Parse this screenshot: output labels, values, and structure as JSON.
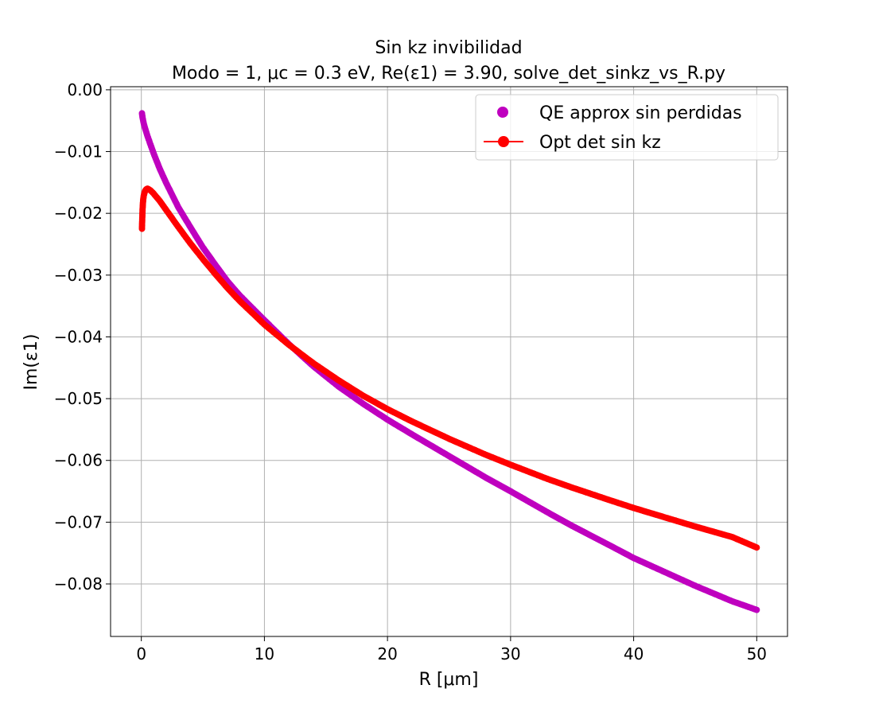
{
  "chart_data": {
    "type": "scatter",
    "title": "Sin kz invibilidad",
    "subtitle": "Modo = 1, μc = 0.3 eV, Re(ε1) = 3.90, solve_det_sinkz_vs_R.py",
    "xlabel": "R [μm]",
    "ylabel": "Im(ε1)",
    "xlim": [
      -2.5,
      52.5
    ],
    "ylim": [
      -0.0885,
      0.0005
    ],
    "xticks": [
      0,
      10,
      20,
      30,
      40,
      50
    ],
    "yticks": [
      0.0,
      -0.01,
      -0.02,
      -0.03,
      -0.04,
      -0.05,
      -0.06,
      -0.07,
      -0.08
    ],
    "xtick_labels": [
      "0",
      "10",
      "20",
      "30",
      "40",
      "50"
    ],
    "ytick_labels": [
      "0.00",
      "−0.01",
      "−0.02",
      "−0.03",
      "−0.04",
      "−0.05",
      "−0.06",
      "−0.07",
      "−0.08"
    ],
    "grid": true,
    "legend_position": "top-right",
    "series": [
      {
        "name": "QE approx sin perdidas",
        "marker": "circle",
        "line": false,
        "color": "#bf00bf",
        "x": [
          0.05,
          0.1,
          0.2,
          0.3,
          0.5,
          0.75,
          1,
          1.5,
          2,
          3,
          4,
          5,
          6,
          7,
          8,
          9,
          10,
          12,
          14,
          16,
          18,
          20,
          22,
          25,
          28,
          30,
          33,
          35,
          38,
          40,
          43,
          45,
          48,
          50
        ],
        "y": [
          -0.0038,
          -0.0045,
          -0.0055,
          -0.0062,
          -0.0075,
          -0.0089,
          -0.0103,
          -0.0128,
          -0.015,
          -0.019,
          -0.0223,
          -0.0255,
          -0.0283,
          -0.031,
          -0.0333,
          -0.0353,
          -0.0373,
          -0.0412,
          -0.0448,
          -0.048,
          -0.0508,
          -0.0534,
          -0.0558,
          -0.0593,
          -0.0628,
          -0.065,
          -0.0684,
          -0.0706,
          -0.0737,
          -0.0758,
          -0.0785,
          -0.0803,
          -0.0828,
          -0.0842
        ]
      },
      {
        "name": "Opt det sin kz",
        "marker": "circle",
        "line": true,
        "color": "#ff0000",
        "x": [
          0.05,
          0.1,
          0.15,
          0.2,
          0.25,
          0.3,
          0.4,
          0.5,
          0.6,
          0.75,
          1,
          1.5,
          2,
          3,
          4,
          5,
          6,
          7,
          8,
          9,
          10,
          12,
          14,
          16,
          18,
          20,
          22,
          25,
          28,
          30,
          33,
          35,
          38,
          40,
          43,
          45,
          48,
          50
        ],
        "y": [
          -0.0225,
          -0.0193,
          -0.0178,
          -0.0171,
          -0.0167,
          -0.0164,
          -0.0161,
          -0.016,
          -0.0161,
          -0.0163,
          -0.0168,
          -0.018,
          -0.0194,
          -0.0222,
          -0.0249,
          -0.0274,
          -0.0298,
          -0.0321,
          -0.0342,
          -0.0361,
          -0.038,
          -0.0413,
          -0.0443,
          -0.047,
          -0.0495,
          -0.0517,
          -0.0537,
          -0.0565,
          -0.0591,
          -0.0607,
          -0.063,
          -0.0644,
          -0.0664,
          -0.0677,
          -0.0695,
          -0.0707,
          -0.0724,
          -0.0741
        ]
      }
    ]
  }
}
